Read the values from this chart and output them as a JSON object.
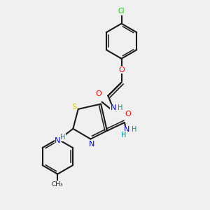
{
  "bg_color": "#f0f0f0",
  "bond_color": "#1a1a1a",
  "atom_colors": {
    "Cl": "#00cc00",
    "O": "#ff0000",
    "N": "#0000cc",
    "S": "#cccc00",
    "H": "#008888",
    "C": "#1a1a1a"
  },
  "figsize": [
    3.0,
    3.0
  ],
  "dpi": 100
}
